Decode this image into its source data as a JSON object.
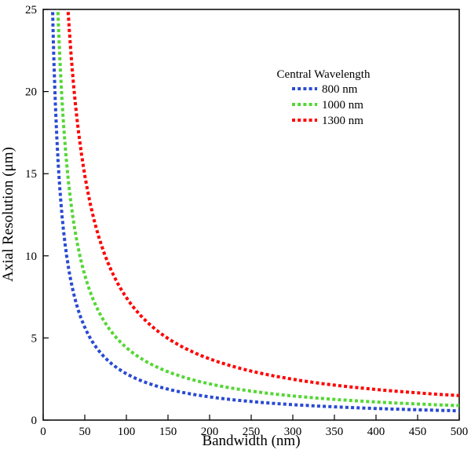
{
  "figure": {
    "background_color": "#ffffff",
    "axis_color": "#000000"
  },
  "chart_data": {
    "type": "line",
    "title": "",
    "xlabel": "Bandwidth (nm)",
    "ylabel": "Axial Resolution (μm)",
    "xlim": [
      0,
      500
    ],
    "ylim": [
      0,
      25
    ],
    "xticks": [
      0,
      50,
      100,
      150,
      200,
      250,
      300,
      350,
      400,
      450,
      500
    ],
    "yticks": [
      0,
      5,
      10,
      15,
      20,
      25
    ],
    "grid": false,
    "line_style": "dashed",
    "line_width": 4,
    "legend": {
      "title": "Central Wavelength",
      "position": "upper-right-inside"
    },
    "series": [
      {
        "name": "800 nm",
        "color": "#2a4ad2",
        "formula": "y = 282.4 / x  (y in um, x in nm)",
        "k": 282.4,
        "points": [
          [
            12,
            23.5
          ],
          [
            15,
            18.8
          ],
          [
            20,
            14.1
          ],
          [
            25,
            11.3
          ],
          [
            30,
            9.4
          ],
          [
            40,
            7.1
          ],
          [
            50,
            5.6
          ],
          [
            60,
            4.7
          ],
          [
            80,
            3.5
          ],
          [
            100,
            2.8
          ],
          [
            150,
            1.9
          ],
          [
            200,
            1.4
          ],
          [
            250,
            1.1
          ],
          [
            300,
            0.94
          ],
          [
            350,
            0.81
          ],
          [
            400,
            0.71
          ],
          [
            450,
            0.63
          ],
          [
            500,
            0.56
          ]
        ]
      },
      {
        "name": "1000 nm",
        "color": "#55d636",
        "formula": "y = 441.3 / x  (y in um, x in nm)",
        "k": 441.3,
        "points": [
          [
            18,
            24.5
          ],
          [
            20,
            22.1
          ],
          [
            25,
            17.7
          ],
          [
            30,
            14.7
          ],
          [
            40,
            11.0
          ],
          [
            50,
            8.8
          ],
          [
            60,
            7.4
          ],
          [
            80,
            5.5
          ],
          [
            100,
            4.4
          ],
          [
            150,
            2.9
          ],
          [
            200,
            2.2
          ],
          [
            250,
            1.8
          ],
          [
            300,
            1.5
          ],
          [
            350,
            1.3
          ],
          [
            400,
            1.1
          ],
          [
            450,
            0.98
          ],
          [
            500,
            0.88
          ]
        ]
      },
      {
        "name": "1300 nm",
        "color": "#ff0000",
        "formula": "y = 745.7 / x  (y in um, x in nm)",
        "k": 745.7,
        "points": [
          [
            30,
            24.9
          ],
          [
            35,
            21.3
          ],
          [
            40,
            18.6
          ],
          [
            50,
            14.9
          ],
          [
            60,
            12.4
          ],
          [
            80,
            9.3
          ],
          [
            100,
            7.5
          ],
          [
            150,
            5.0
          ],
          [
            200,
            3.7
          ],
          [
            250,
            3.0
          ],
          [
            300,
            2.5
          ],
          [
            350,
            2.1
          ],
          [
            400,
            1.9
          ],
          [
            450,
            1.7
          ],
          [
            500,
            1.5
          ]
        ]
      }
    ]
  }
}
